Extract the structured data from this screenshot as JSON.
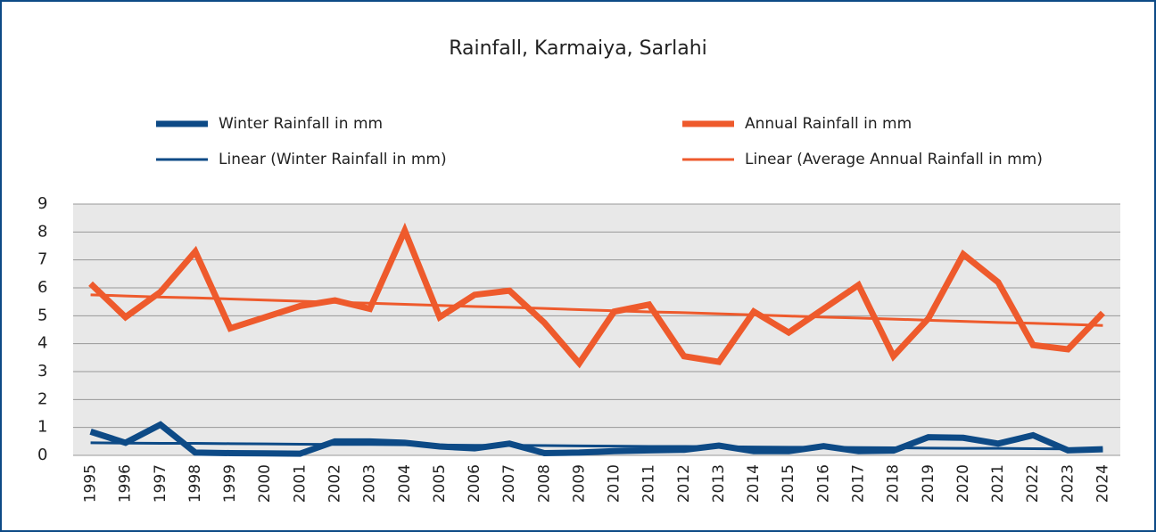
{
  "chart_data": {
    "type": "line",
    "title": "Rainfall, Karmaiya, Sarlahi",
    "categories": [
      "1995",
      "1996",
      "1997",
      "1998",
      "1999",
      "2000",
      "2001",
      "2002",
      "2003",
      "2004",
      "2005",
      "2006",
      "2007",
      "2008",
      "2009",
      "2010",
      "2011",
      "2012",
      "2013",
      "2014",
      "2015",
      "2016",
      "2017",
      "2018",
      "2019",
      "2020",
      "2021",
      "2022",
      "2023",
      "2024"
    ],
    "series": [
      {
        "name": "Winter Rainfall in mm",
        "color": "#0d4a86",
        "width": 7,
        "values": [
          0.85,
          0.45,
          1.1,
          0.1,
          0.08,
          0.07,
          0.06,
          0.5,
          0.5,
          0.45,
          0.32,
          0.25,
          0.42,
          0.08,
          0.1,
          0.15,
          0.18,
          0.2,
          0.35,
          0.15,
          0.15,
          0.33,
          0.15,
          0.17,
          0.65,
          0.63,
          0.42,
          0.72,
          0.18,
          0.22
        ]
      },
      {
        "name": "Annual Rainfall in mm",
        "color": "#ee5a2c",
        "width": 7,
        "values": [
          6.15,
          4.95,
          5.85,
          7.3,
          4.55,
          4.95,
          5.35,
          5.55,
          5.25,
          8.05,
          4.95,
          5.75,
          5.9,
          4.75,
          3.3,
          5.15,
          5.4,
          3.55,
          3.35,
          5.15,
          4.4,
          5.25,
          6.1,
          3.55,
          4.9,
          7.2,
          6.2,
          3.95,
          3.8,
          5.1
        ]
      },
      {
        "name": "Linear (Winter Rainfall in mm)",
        "color": "#0d4a86",
        "width": 3,
        "values": [
          0.45,
          0.44,
          0.43,
          0.43,
          0.42,
          0.41,
          0.4,
          0.39,
          0.39,
          0.38,
          0.37,
          0.36,
          0.36,
          0.35,
          0.34,
          0.33,
          0.32,
          0.32,
          0.31,
          0.3,
          0.29,
          0.29,
          0.28,
          0.27,
          0.26,
          0.25,
          0.25,
          0.24,
          0.23,
          0.22
        ]
      },
      {
        "name": "Linear (Average Annual Rainfall in mm)",
        "color": "#ee5a2c",
        "width": 3,
        "values": [
          5.75,
          5.71,
          5.67,
          5.64,
          5.6,
          5.56,
          5.52,
          5.48,
          5.45,
          5.41,
          5.37,
          5.33,
          5.3,
          5.26,
          5.22,
          5.18,
          5.14,
          5.11,
          5.07,
          5.03,
          4.99,
          4.95,
          4.92,
          4.88,
          4.84,
          4.8,
          4.76,
          4.73,
          4.69,
          4.65
        ]
      }
    ],
    "ylim": [
      0,
      9
    ],
    "yticks": [
      0,
      1,
      2,
      3,
      4,
      5,
      6,
      7,
      8,
      9
    ],
    "grid": true,
    "plot_background": "#e8e8e8"
  }
}
